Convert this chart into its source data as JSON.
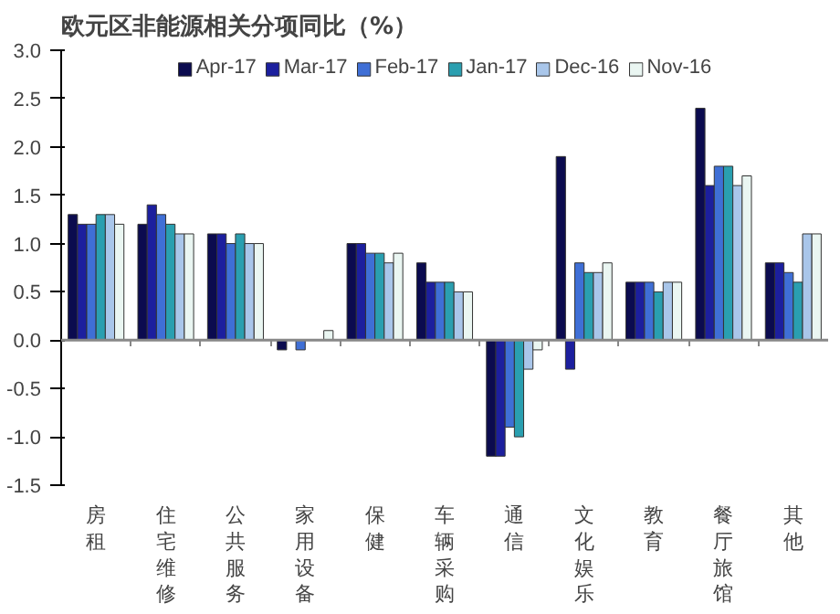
{
  "chart_data": {
    "type": "bar",
    "title": "欧元区非能源相关分项同比（%）",
    "categories": [
      "房租",
      "住宅维修",
      "公共服务",
      "家用设备",
      "保健",
      "车辆采购",
      "通信",
      "文化娱乐",
      "教育",
      "餐厅旅馆",
      "其他"
    ],
    "series": [
      {
        "name": "Apr-17",
        "color": "#0b0b4f",
        "values": [
          1.3,
          1.2,
          1.1,
          -0.1,
          1.0,
          0.8,
          -1.2,
          1.9,
          0.6,
          2.4,
          0.8
        ]
      },
      {
        "name": "Mar-17",
        "color": "#1c1f9e",
        "values": [
          1.2,
          1.4,
          1.1,
          null,
          1.0,
          0.6,
          -1.2,
          -0.3,
          0.6,
          1.6,
          0.8
        ]
      },
      {
        "name": "Feb-17",
        "color": "#3f6fd6",
        "values": [
          1.2,
          1.3,
          1.0,
          -0.1,
          0.9,
          0.6,
          -0.9,
          0.8,
          0.6,
          1.8,
          0.7
        ]
      },
      {
        "name": "Jan-17",
        "color": "#2a9fb0",
        "values": [
          1.3,
          1.2,
          1.1,
          null,
          0.9,
          0.6,
          -1.0,
          0.7,
          0.5,
          1.8,
          0.6
        ]
      },
      {
        "name": "Dec-16",
        "color": "#a9c6ea",
        "values": [
          1.3,
          1.1,
          1.0,
          null,
          0.8,
          0.5,
          -0.3,
          0.7,
          0.6,
          1.6,
          1.1
        ]
      },
      {
        "name": "Nov-16",
        "color": "#eaf6f2",
        "values": [
          1.2,
          1.1,
          1.0,
          0.1,
          0.9,
          0.5,
          -0.1,
          0.8,
          0.6,
          1.7,
          1.1
        ]
      }
    ],
    "ylim": [
      -1.5,
      3.0
    ],
    "yticks": [
      -1.5,
      {
        "value": -1,
        "label": "-1.0"
      },
      -0.5,
      {
        "value": 0,
        "label": "0.0"
      },
      0.5,
      {
        "value": 1,
        "label": "1.0"
      },
      1.5,
      {
        "value": 2,
        "label": "2.0"
      },
      2.5,
      {
        "value": 3,
        "label": "3.0"
      }
    ],
    "ref_lines": [
      {
        "axis": "y",
        "value": 0,
        "color": "#888888"
      }
    ],
    "legend": "top"
  }
}
